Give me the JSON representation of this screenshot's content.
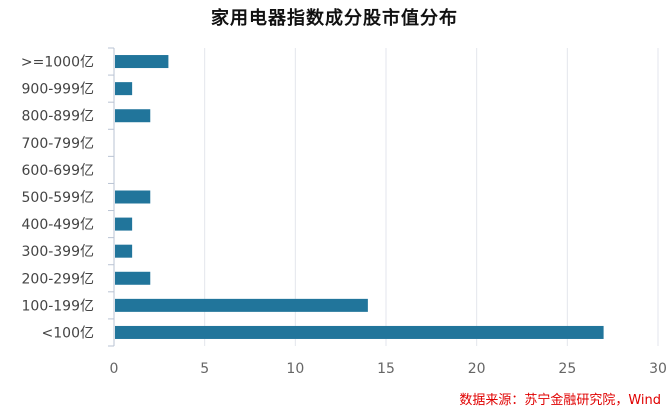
{
  "chart_data": {
    "type": "bar",
    "orientation": "horizontal",
    "title": "家用电器指数成分股市值分布",
    "categories": [
      ">=1000亿",
      "900-999亿",
      "800-899亿",
      "700-799亿",
      "600-699亿",
      "500-599亿",
      "400-499亿",
      "300-399亿",
      "200-299亿",
      "100-199亿",
      "<100亿"
    ],
    "values": [
      3,
      1,
      2,
      0,
      0,
      2,
      1,
      1,
      2,
      14,
      27
    ],
    "xlim": [
      0,
      30
    ],
    "xticks": [
      0,
      5,
      10,
      15,
      20,
      25,
      30
    ],
    "grid": true,
    "bar_color": "#21759b",
    "source": "数据来源：苏宁金融研究院，Wind"
  }
}
